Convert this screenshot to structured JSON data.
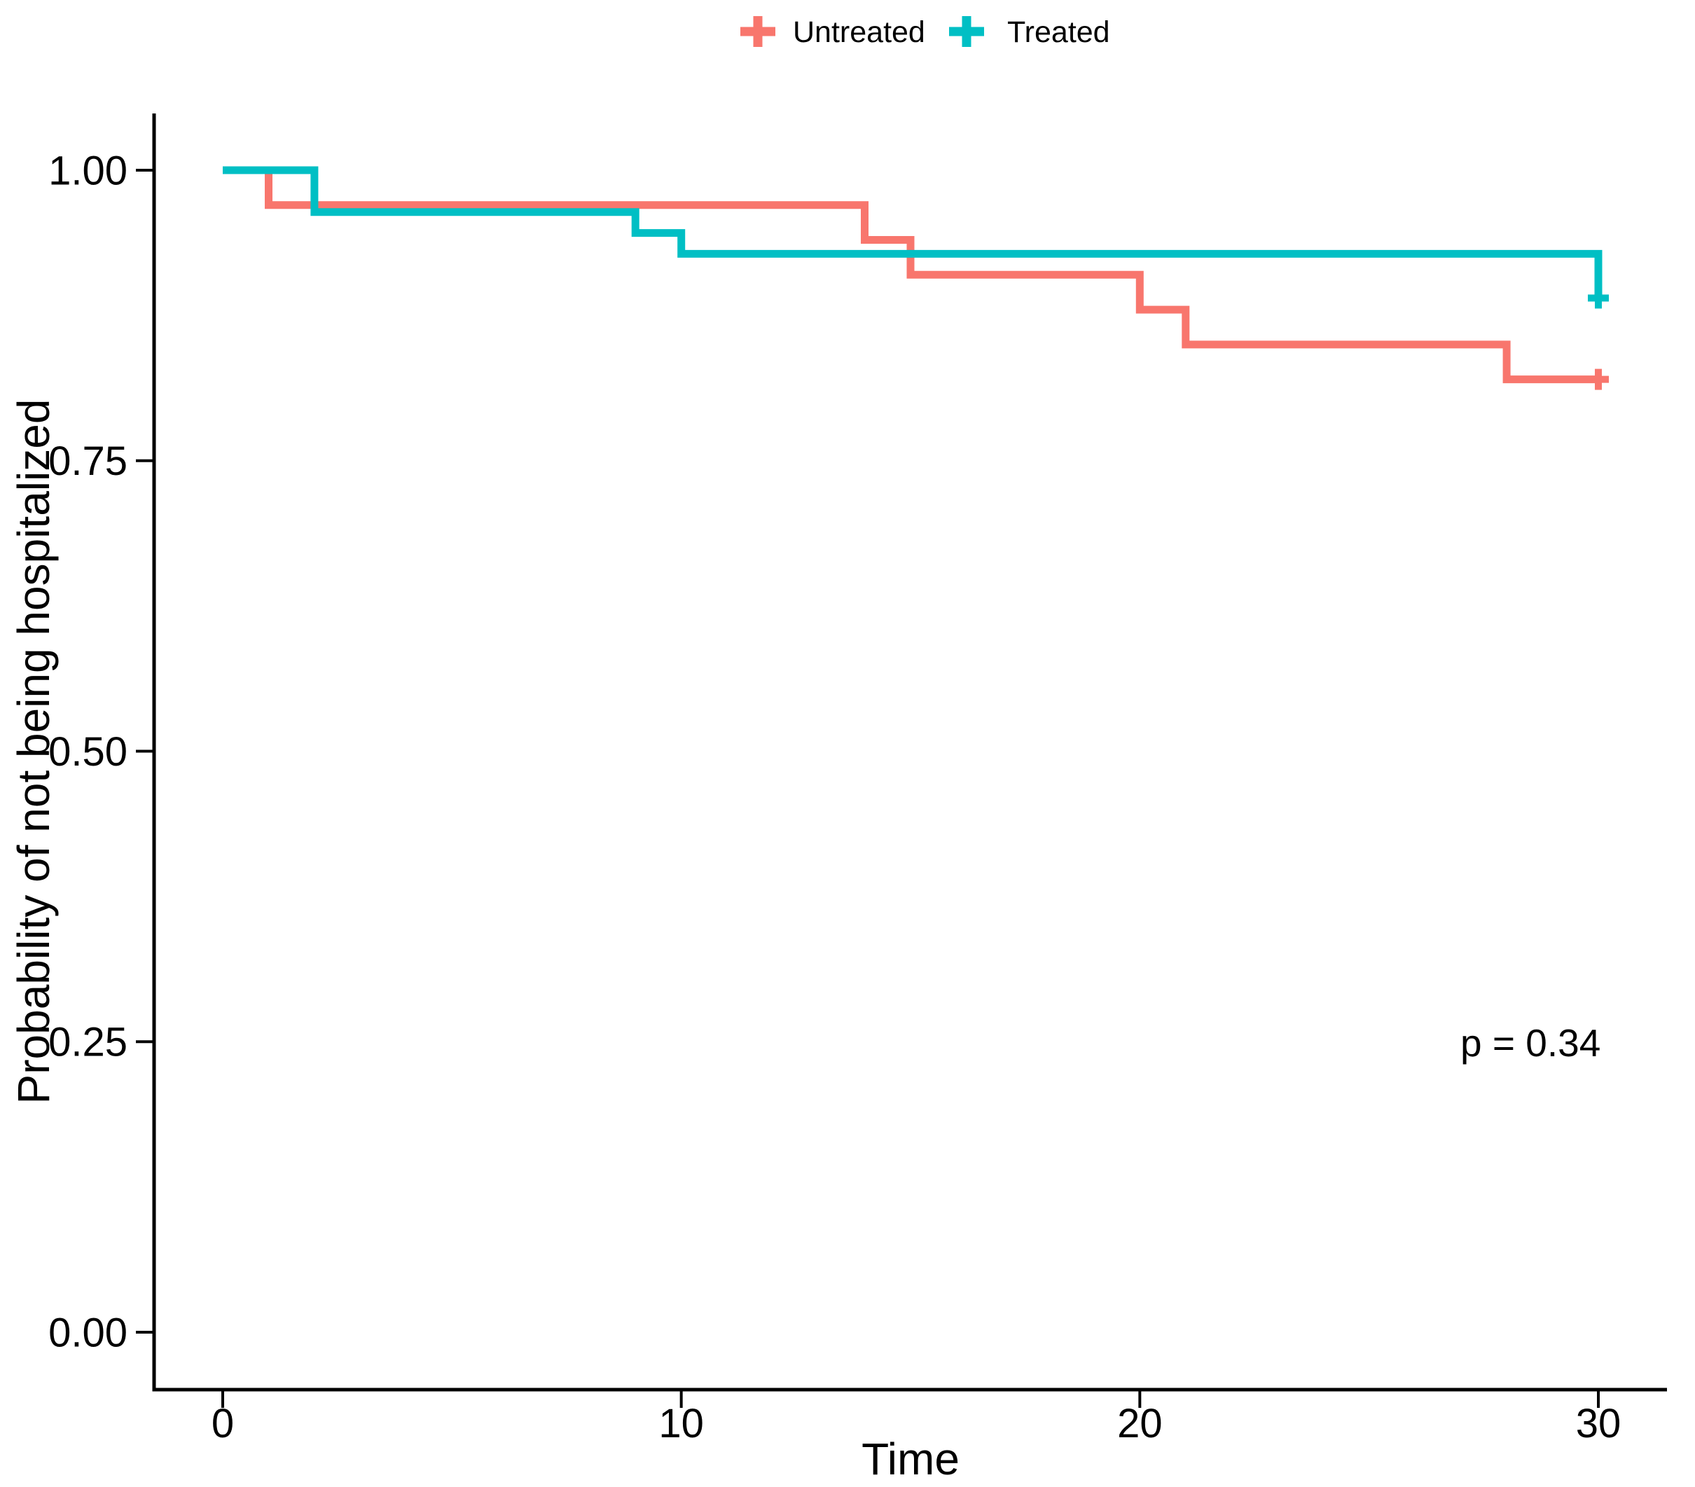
{
  "figure": {
    "background_color": "#FFFFFF",
    "axis_color": "#000000",
    "text_color": "#000000"
  },
  "legend": {
    "position": "top-center",
    "items": [
      {
        "label": "Untreated",
        "color": "#F8766D",
        "marker": "plus-icon"
      },
      {
        "label": "Treated",
        "color": "#00BFC4",
        "marker": "plus-icon"
      }
    ]
  },
  "annotation": {
    "p_value": "p = 0.34"
  },
  "chart_data": {
    "type": "line",
    "subtype": "kaplan-meier-step",
    "title": "",
    "xlabel": "Time",
    "ylabel": "Probability of not being hospitalized",
    "xlim": [
      0,
      30
    ],
    "ylim": [
      0.0,
      1.05
    ],
    "x_ticks": [
      "0",
      "10",
      "20",
      "30"
    ],
    "y_ticks": [
      "0.00",
      "0.25",
      "0.50",
      "0.75",
      "1.00"
    ],
    "grid": false,
    "legend_position": "top",
    "p_value_text": "p = 0.34",
    "series": [
      {
        "name": "Untreated",
        "color": "#F8766D",
        "steps": [
          [
            0,
            1.0
          ],
          [
            1,
            0.97
          ],
          [
            14,
            0.94
          ],
          [
            15,
            0.91
          ],
          [
            20,
            0.88
          ],
          [
            21,
            0.85
          ],
          [
            28,
            0.82
          ]
        ],
        "end_time": 30,
        "censored": [
          [
            30,
            0.82
          ]
        ]
      },
      {
        "name": "Treated",
        "color": "#00BFC4",
        "steps": [
          [
            0,
            1.0
          ],
          [
            2,
            0.964
          ],
          [
            9,
            0.946
          ],
          [
            10,
            0.928
          ],
          [
            30,
            0.89
          ]
        ],
        "end_time": 30,
        "censored": [
          [
            30,
            0.89
          ]
        ]
      }
    ]
  }
}
